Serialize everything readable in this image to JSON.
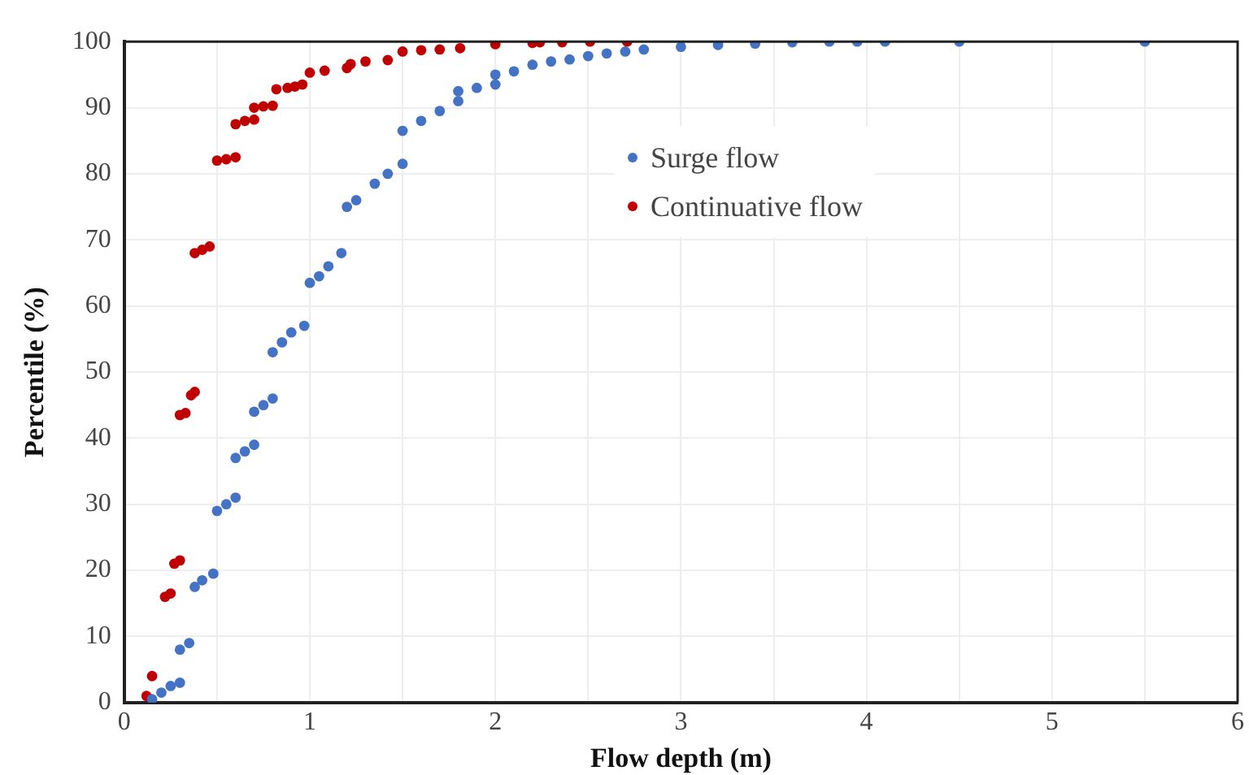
{
  "chart_data": {
    "type": "scatter",
    "xlabel": "Flow depth (m)",
    "ylabel": "Percentile (%)",
    "xlim": [
      0,
      6
    ],
    "xticks": [
      0,
      {
        "value": 0.5,
        "label": null
      },
      1,
      {
        "value": 1.5,
        "label": null
      },
      2,
      {
        "value": 2.5,
        "label": null
      },
      3,
      {
        "value": 3.5,
        "label": null
      },
      4,
      {
        "value": 4.5,
        "label": null
      },
      5,
      {
        "value": 5.5,
        "label": null
      },
      6
    ],
    "ylim": [
      0,
      100
    ],
    "yticks": [
      0,
      10,
      20,
      30,
      40,
      50,
      60,
      70,
      80,
      90,
      100
    ],
    "grid": true,
    "legend": "top",
    "marker": "circle",
    "series": [
      {
        "name": "Surge flow",
        "color": "#4472c4",
        "x": [
          0.15,
          0.2,
          0.25,
          0.3,
          0.3,
          0.35,
          0.38,
          0.42,
          0.48,
          0.5,
          0.55,
          0.6,
          0.6,
          0.65,
          0.7,
          0.7,
          0.75,
          0.8,
          0.8,
          0.85,
          0.9,
          0.97,
          1.0,
          1.05,
          1.1,
          1.17,
          1.2,
          1.25,
          1.35,
          1.42,
          1.5,
          1.5,
          1.6,
          1.7,
          1.8,
          1.8,
          1.9,
          2.0,
          2.0,
          2.1,
          2.2,
          2.3,
          2.4,
          2.5,
          2.6,
          2.7,
          2.8,
          3.0,
          3.2,
          3.4,
          3.6,
          3.8,
          3.95,
          4.1,
          4.5,
          5.5
        ],
        "values": [
          0.5,
          1.5,
          2.5,
          3,
          8,
          9,
          17.5,
          18.5,
          19.5,
          29,
          30,
          31,
          37,
          38,
          39,
          44,
          45,
          46,
          53,
          54.5,
          56,
          57,
          63.5,
          64.5,
          66,
          68,
          75,
          76,
          78.5,
          80,
          81.5,
          86.5,
          88,
          89.5,
          91,
          92.5,
          93,
          93.5,
          95,
          95.5,
          96.5,
          97,
          97.3,
          97.8,
          98.2,
          98.5,
          98.8,
          99.2,
          99.5,
          99.7,
          99.9,
          100,
          100,
          100,
          100,
          100
        ]
      },
      {
        "name": "Continuative flow",
        "color": "#c00000",
        "x": [
          0.12,
          0.15,
          0.22,
          0.25,
          0.27,
          0.3,
          0.3,
          0.33,
          0.36,
          0.38,
          0.38,
          0.42,
          0.46,
          0.5,
          0.55,
          0.6,
          0.6,
          0.65,
          0.7,
          0.7,
          0.75,
          0.8,
          0.82,
          0.88,
          0.92,
          0.96,
          1.0,
          1.08,
          1.2,
          1.22,
          1.3,
          1.42,
          1.5,
          1.6,
          1.7,
          1.81,
          2.0,
          2.2,
          2.24,
          2.36,
          2.51,
          2.71
        ],
        "values": [
          1,
          4,
          16,
          16.5,
          21,
          21.5,
          43.5,
          43.8,
          46.5,
          47,
          68,
          68.5,
          69,
          82,
          82.2,
          82.5,
          87.5,
          88,
          88.2,
          90,
          90.2,
          90.3,
          92.8,
          93,
          93.2,
          93.5,
          95.3,
          95.6,
          96,
          96.6,
          97,
          97.2,
          98.5,
          98.7,
          98.8,
          99,
          99.6,
          99.8,
          99.9,
          99.9,
          100,
          100
        ]
      }
    ]
  }
}
